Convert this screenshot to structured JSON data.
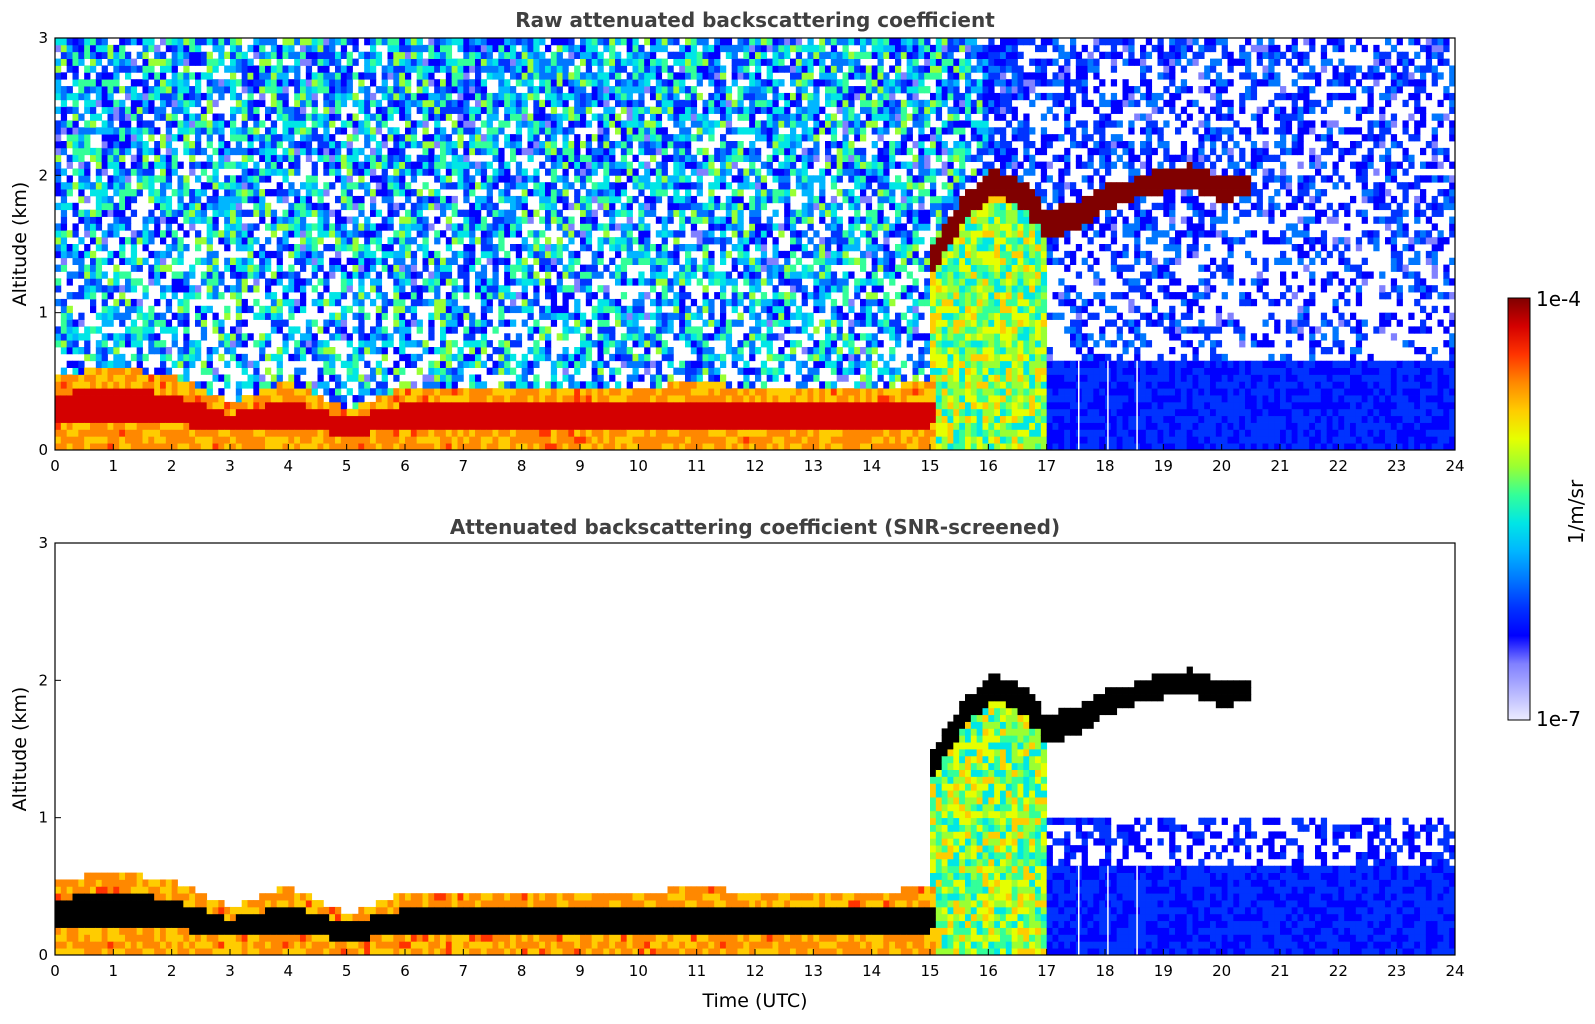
{
  "chart_data": [
    {
      "type": "heatmap",
      "title": "Raw attenuated backscattering coefficient",
      "xlabel": "",
      "ylabel": "Altitude (km)",
      "xlim": [
        0,
        24
      ],
      "ylim": [
        0,
        3
      ],
      "x_ticks": [
        0,
        1,
        2,
        3,
        4,
        5,
        6,
        7,
        8,
        9,
        10,
        11,
        12,
        13,
        14,
        15,
        16,
        17,
        18,
        19,
        20,
        21,
        22,
        23,
        24
      ],
      "y_ticks": [
        0,
        1,
        2,
        3
      ],
      "layers": [
        {
          "name": "boundary-layer-aerosol",
          "x": [
            0,
            1,
            2,
            3,
            4,
            5,
            6,
            7,
            8,
            9,
            10,
            11,
            12,
            13,
            14,
            15
          ],
          "top": [
            0.55,
            0.6,
            0.55,
            0.35,
            0.5,
            0.3,
            0.45,
            0.45,
            0.45,
            0.45,
            0.45,
            0.5,
            0.45,
            0.45,
            0.45,
            0.5
          ],
          "level": 0.9
        },
        {
          "name": "cloud-layer",
          "x": [
            15,
            15.5,
            16,
            16.5,
            17,
            17.5,
            18,
            18.5,
            19,
            19.5,
            20,
            20.5
          ],
          "base": [
            1.25,
            1.6,
            1.85,
            1.8,
            1.55,
            1.6,
            1.75,
            1.82,
            1.88,
            1.9,
            1.8,
            1.85
          ],
          "top": [
            1.45,
            1.8,
            2.05,
            2.0,
            1.75,
            1.8,
            1.92,
            1.98,
            2.05,
            2.08,
            2.0,
            2.02
          ],
          "level": 1.0
        }
      ],
      "white_gaps_x": [
        17.55,
        18.05,
        18.55
      ]
    },
    {
      "type": "heatmap",
      "title": "Attenuated backscattering coefficient (SNR-screened)",
      "xlabel": "Time (UTC)",
      "ylabel": "Altitude (km)",
      "xlim": [
        0,
        24
      ],
      "ylim": [
        0,
        3
      ],
      "x_ticks": [
        0,
        1,
        2,
        3,
        4,
        5,
        6,
        7,
        8,
        9,
        10,
        11,
        12,
        13,
        14,
        15,
        16,
        17,
        18,
        19,
        20,
        21,
        22,
        23,
        24
      ],
      "y_ticks": [
        0,
        1,
        2,
        3
      ],
      "layers": [
        {
          "name": "boundary-layer-aerosol",
          "x": [
            0,
            1,
            2,
            3,
            4,
            5,
            6,
            7,
            8,
            9,
            10,
            11,
            12,
            13,
            14,
            15
          ],
          "top": [
            0.55,
            0.6,
            0.55,
            0.35,
            0.5,
            0.3,
            0.45,
            0.45,
            0.45,
            0.45,
            0.45,
            0.5,
            0.45,
            0.45,
            0.45,
            0.5
          ],
          "level": 0.9
        },
        {
          "name": "cloud-layer",
          "x": [
            15,
            15.5,
            16,
            16.5,
            17,
            17.5,
            18,
            18.5,
            19,
            19.5,
            20,
            20.5
          ],
          "base": [
            1.25,
            1.6,
            1.85,
            1.8,
            1.55,
            1.6,
            1.75,
            1.82,
            1.88,
            1.9,
            1.8,
            1.85
          ],
          "top": [
            1.45,
            1.8,
            2.05,
            2.0,
            1.75,
            1.8,
            1.92,
            1.98,
            2.05,
            2.08,
            2.0,
            2.02
          ],
          "level": 1.0
        }
      ],
      "white_gaps_x": [
        17.55,
        18.05,
        18.55
      ]
    }
  ],
  "colorbar": {
    "label": "1/m/sr",
    "min_label": "1e-7",
    "max_label": "1e-4",
    "colors": [
      "#ececff",
      "#b6b6ff",
      "#8080ff",
      "#0000ff",
      "#0033ff",
      "#0077ff",
      "#00b6ff",
      "#00e6e6",
      "#33ff99",
      "#99ff33",
      "#e6ff00",
      "#ffcc00",
      "#ff8800",
      "#ff3300",
      "#d40000",
      "#800000"
    ]
  }
}
